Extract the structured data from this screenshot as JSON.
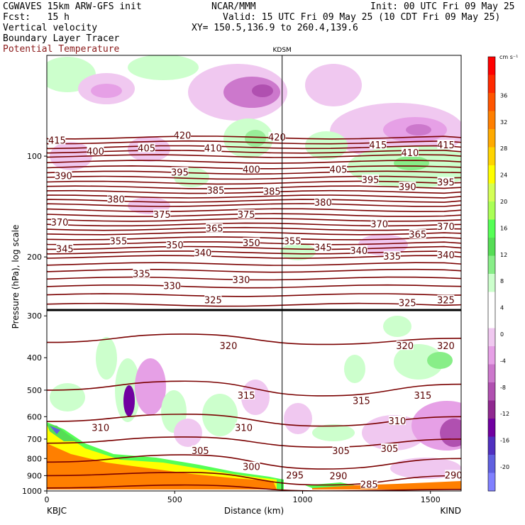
{
  "header": {
    "model": "CGWAVES 15km ARW-GFS init",
    "org": "NCAR/MMM",
    "init": "Init: 00 UTC Fri 09 May 25",
    "fcst": "Fcst:   15 h",
    "valid": "Valid: 15 UTC Fri 09 May 25 (10 CDT Fri 09 May 25)",
    "xy": "XY= 150.5,136.9 to 260.4,139.6",
    "field1": "Vertical velocity",
    "field2": "Boundary Layer Tracer",
    "field3": "Potential Temperature",
    "field3_color": "#8b1a1a"
  },
  "chart_data": {
    "type": "heatmap",
    "marker_label": "KDSM",
    "marker_x": 920,
    "xlabel": "Distance (km)",
    "ylabel": "Pressure (hPa), log scale",
    "x_ticks": [
      0,
      500,
      1000,
      1500
    ],
    "xlim": [
      0,
      1620
    ],
    "left_station": "KBJC",
    "right_station": "KIND",
    "y_ticks": [
      100,
      200,
      300,
      400,
      500,
      600,
      700,
      800,
      900,
      1000
    ],
    "ylim_hpa": [
      1000,
      50
    ],
    "colorbar": {
      "unit": "cm s⁻¹",
      "labels": [
        36,
        32,
        28,
        24,
        20,
        16,
        12,
        8,
        4,
        0,
        -4,
        -8,
        -12,
        -16,
        -20
      ],
      "colors": [
        "#ff0000",
        "#ff2a00",
        "#ff5500",
        "#ff7f00",
        "#ffaa00",
        "#ffd400",
        "#ffff00",
        "#d4ff55",
        "#aaff55",
        "#55ff55",
        "#55dd55",
        "#88ee88",
        "#ccffcc",
        "#ffffff",
        "#ffffff",
        "#f0c8f0",
        "#e6a0e6",
        "#cc78cc",
        "#b050b0",
        "#902890",
        "#7000a0",
        "#5030c0",
        "#6060e0",
        "#8080ff"
      ]
    },
    "theta_labels": [
      {
        "v": "415",
        "x": 40,
        "p": 90
      },
      {
        "v": "420",
        "x": 530,
        "p": 87
      },
      {
        "v": "420",
        "x": 900,
        "p": 88
      },
      {
        "v": "415",
        "x": 1295,
        "p": 93
      },
      {
        "v": "415",
        "x": 1560,
        "p": 93
      },
      {
        "v": "400",
        "x": 190,
        "p": 97
      },
      {
        "v": "405",
        "x": 390,
        "p": 95
      },
      {
        "v": "410",
        "x": 650,
        "p": 95
      },
      {
        "v": "410",
        "x": 1420,
        "p": 98
      },
      {
        "v": "390",
        "x": 65,
        "p": 115
      },
      {
        "v": "395",
        "x": 520,
        "p": 112
      },
      {
        "v": "400",
        "x": 800,
        "p": 110
      },
      {
        "v": "405",
        "x": 1140,
        "p": 110
      },
      {
        "v": "395",
        "x": 1265,
        "p": 118
      },
      {
        "v": "390",
        "x": 1410,
        "p": 124
      },
      {
        "v": "395",
        "x": 1560,
        "p": 120
      },
      {
        "v": "380",
        "x": 270,
        "p": 135
      },
      {
        "v": "385",
        "x": 660,
        "p": 127
      },
      {
        "v": "385",
        "x": 880,
        "p": 128
      },
      {
        "v": "380",
        "x": 1080,
        "p": 138
      },
      {
        "v": "370",
        "x": 50,
        "p": 158
      },
      {
        "v": "375",
        "x": 450,
        "p": 150
      },
      {
        "v": "375",
        "x": 780,
        "p": 150
      },
      {
        "v": "370",
        "x": 1300,
        "p": 160
      },
      {
        "v": "370",
        "x": 1560,
        "p": 163
      },
      {
        "v": "365",
        "x": 655,
        "p": 165
      },
      {
        "v": "365",
        "x": 1450,
        "p": 172
      },
      {
        "v": "345",
        "x": 70,
        "p": 190
      },
      {
        "v": "355",
        "x": 280,
        "p": 180
      },
      {
        "v": "350",
        "x": 500,
        "p": 185
      },
      {
        "v": "340",
        "x": 610,
        "p": 195
      },
      {
        "v": "350",
        "x": 800,
        "p": 182
      },
      {
        "v": "355",
        "x": 960,
        "p": 180
      },
      {
        "v": "345",
        "x": 1080,
        "p": 188
      },
      {
        "v": "340",
        "x": 1220,
        "p": 192
      },
      {
        "v": "335",
        "x": 1350,
        "p": 200
      },
      {
        "v": "340",
        "x": 1560,
        "p": 198
      },
      {
        "v": "335",
        "x": 370,
        "p": 225
      },
      {
        "v": "330",
        "x": 490,
        "p": 245
      },
      {
        "v": "330",
        "x": 760,
        "p": 235
      },
      {
        "v": "325",
        "x": 650,
        "p": 270
      },
      {
        "v": "325",
        "x": 1410,
        "p": 275
      },
      {
        "v": "325",
        "x": 1560,
        "p": 270
      },
      {
        "v": "320",
        "x": 710,
        "p": 370
      },
      {
        "v": "320",
        "x": 1400,
        "p": 370
      },
      {
        "v": "320",
        "x": 1560,
        "p": 370
      },
      {
        "v": "315",
        "x": 780,
        "p": 520
      },
      {
        "v": "315",
        "x": 1230,
        "p": 540
      },
      {
        "v": "315",
        "x": 1470,
        "p": 520
      },
      {
        "v": "310",
        "x": 210,
        "p": 650
      },
      {
        "v": "310",
        "x": 770,
        "p": 650
      },
      {
        "v": "310",
        "x": 1370,
        "p": 620
      },
      {
        "v": "305",
        "x": 600,
        "p": 760
      },
      {
        "v": "305",
        "x": 1150,
        "p": 760
      },
      {
        "v": "305",
        "x": 1340,
        "p": 750
      },
      {
        "v": "300",
        "x": 800,
        "p": 850
      },
      {
        "v": "295",
        "x": 970,
        "p": 900
      },
      {
        "v": "290",
        "x": 1140,
        "p": 905
      },
      {
        "v": "285",
        "x": 1260,
        "p": 960
      },
      {
        "v": "290",
        "x": 1590,
        "p": 900
      }
    ]
  }
}
